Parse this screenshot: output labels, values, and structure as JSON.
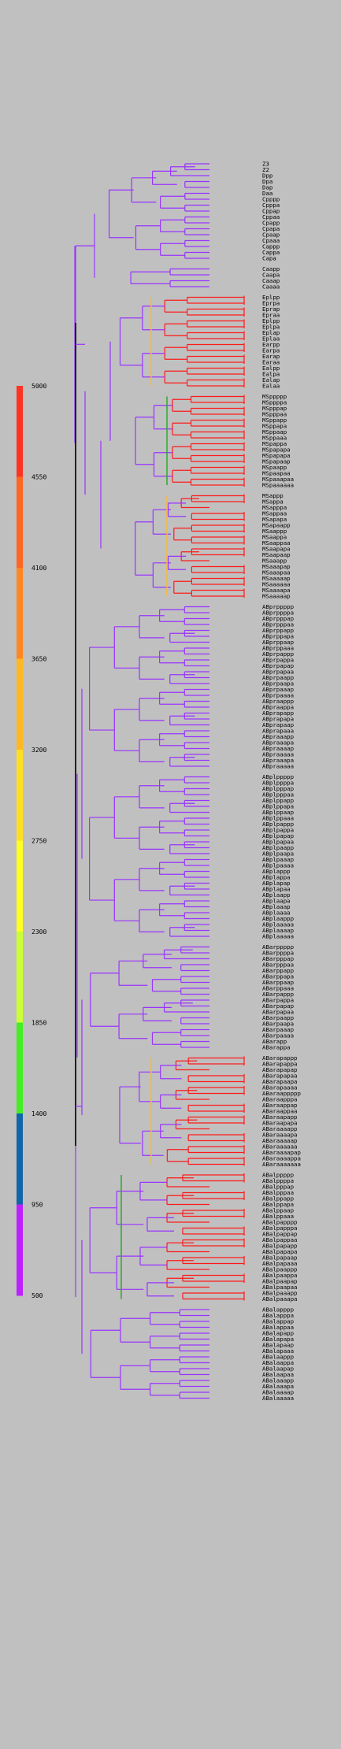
{
  "legend": {
    "ticks": [
      "5000",
      "4550",
      "4100",
      "3650",
      "3200",
      "2750",
      "2300",
      "1850",
      "1400",
      "950",
      "500"
    ],
    "colors": [
      "#ff3322",
      "#ff6622",
      "#ff8822",
      "#ffb822",
      "#ffde22",
      "#ffff22",
      "#ccff33",
      "#44ee22",
      "#1166aa",
      "#bb22ff"
    ]
  },
  "tree": {
    "branch_color": "#9933ff",
    "root_color": "#000000",
    "groups": [
      {
        "leaves": [
          "Z3",
          "Z2",
          "Dpp",
          "Dpa",
          "Dap",
          "Daa",
          "Cpppp",
          "Cpppa",
          "Cppap",
          "Cppaa",
          "Cpapp",
          "Cpapa",
          "Cpaap",
          "Cpaaa",
          "Cappp",
          "Cappa",
          "Capa"
        ],
        "late": false
      },
      {
        "leaves": [
          "Caapp",
          "Caapa",
          "Caaap",
          "Caaaa"
        ],
        "late": false
      },
      {
        "leaves": [
          "Eplpp",
          "Eprpa",
          "Eprap",
          "Epraa",
          "Eplpp",
          "Eplpa",
          "Eplap",
          "Eplaa",
          "Earpp",
          "Earpa",
          "Earap",
          "Earaa",
          "Ealpp",
          "Ealpa",
          "Ealap",
          "Ealaa"
        ],
        "late": true
      },
      {
        "leaves": [
          "MSppppp",
          "MSppppa",
          "MSpppap",
          "MSpppaa",
          "MSppapp",
          "MSppapa",
          "MSppaap",
          "MSppaaa",
          "MSpappa",
          "MSpapapa",
          "MSpapapa",
          "MSpapaap",
          "MSpaapp",
          "MSpaapaa",
          "MSpaaapaa",
          "MSpaaaaaa"
        ],
        "late": true
      },
      {
        "leaves": [
          "MSappp",
          "MSappa",
          "MSapppa",
          "MSappaa",
          "MSapapa",
          "MSapaapp",
          "MSaappp",
          "MSaappa",
          "MSaappaa",
          "MSaapapa",
          "MSaapaap",
          "MSaaapp",
          "MSaaapap",
          "MSaaapaa",
          "MSaaaaap",
          "MSaaaaaa",
          "MSaaaapa",
          "MSaaaaap"
        ],
        "late": true
      },
      {
        "leaves": [
          "ABprppppp",
          "ABprppppa",
          "ABprpppap",
          "ABprpppaa",
          "ABprppapp",
          "ABprppapa",
          "ABprppaap",
          "ABprppaaa",
          "ABprpappp",
          "ABprpappa",
          "ABprpapap",
          "ABprpapaa",
          "ABprpaapp",
          "ABprpaapa",
          "ABprpaaap",
          "ABprpaaaa",
          "ABpraappp",
          "ABpraappa",
          "ABprapapp",
          "ABprapapa",
          "ABprapaap",
          "ABprapaaa",
          "ABpraaapp",
          "ABpraaapa",
          "ABpraaaap",
          "ABpraaaaa",
          "ABpraaapa",
          "ABpraaaaa"
        ],
        "late": false
      },
      {
        "leaves": [
          "ABplppppp",
          "ABplppppa",
          "ABplpppap",
          "ABplpppaa",
          "ABplppapp",
          "ABplppapa",
          "ABplppaap",
          "ABplppaaa",
          "ABplpappp",
          "ABplpappa",
          "ABplpapap",
          "ABplpapaa",
          "ABplpaapp",
          "ABplpaapa",
          "ABplpaaap",
          "ABplpaaaa",
          "ABplappp",
          "ABplappa",
          "ABplapap",
          "ABplapaa",
          "ABplaapp",
          "ABplaapa",
          "ABplaaap",
          "ABplaaaa",
          "ABplaappp",
          "ABplaaaaa",
          "ABplaaaap",
          "ABplaaaaa"
        ],
        "late": false
      },
      {
        "leaves": [
          "ABarppppp",
          "ABarppppa",
          "ABarpppap",
          "ABarpppaa",
          "ABarppapp",
          "ABarppapa",
          "ABarppaap",
          "ABarppaaa",
          "ABarpappp",
          "ABarpappa",
          "ABarpapap",
          "ABarpapaa",
          "ABarpaapp",
          "ABarpaapa",
          "ABarpaaap",
          "ABarpaaaa",
          "ABarapp",
          "ABarappa"
        ],
        "late": false
      },
      {
        "leaves": [
          "ABarapappp",
          "ABarapappa",
          "ABarapapap",
          "ABarapapaa",
          "ABarapaapa",
          "ABarapaaaa",
          "ABaraappppp",
          "ABaraapppa",
          "ABaraappap",
          "ABaraappaa",
          "ABaraapapp",
          "ABaraapapa",
          "ABaraaaapp",
          "ABaraaaapa",
          "ABaraaaaap",
          "ABaraaaaaa",
          "ABaraaaapap",
          "ABaraaaappa",
          "ABaraaaaaaa"
        ],
        "late": true
      },
      {
        "leaves": [
          "ABalppppp",
          "ABalppppa",
          "ABalpppap",
          "ABalpppaa",
          "ABalppapp",
          "ABalppapa",
          "ABalppaap",
          "ABalppaaa",
          "ABalpapppp",
          "ABalpapppa",
          "ABalpappap",
          "ABalpappaa",
          "ABalpapapp",
          "ABalpapapa",
          "ABalpapaap",
          "ABalpapaaa",
          "ABalpaappp",
          "ABalpaappa",
          "ABalpaapap",
          "ABalpaapaa",
          "ABalpaaapp",
          "ABalpaaapa"
        ],
        "late": true
      },
      {
        "leaves": [
          "ABalapppp",
          "ABalapppa",
          "ABalappap",
          "ABalappaa",
          "ABalapapp",
          "ABalapapa",
          "ABalapaap",
          "ABalapaaa",
          "ABalaappp",
          "ABalaappa",
          "ABalaapap",
          "ABalaapaa",
          "ABalaaapp",
          "ABalaaapa",
          "ABalaaaap",
          "ABalaaaaa"
        ],
        "late": false
      }
    ]
  }
}
